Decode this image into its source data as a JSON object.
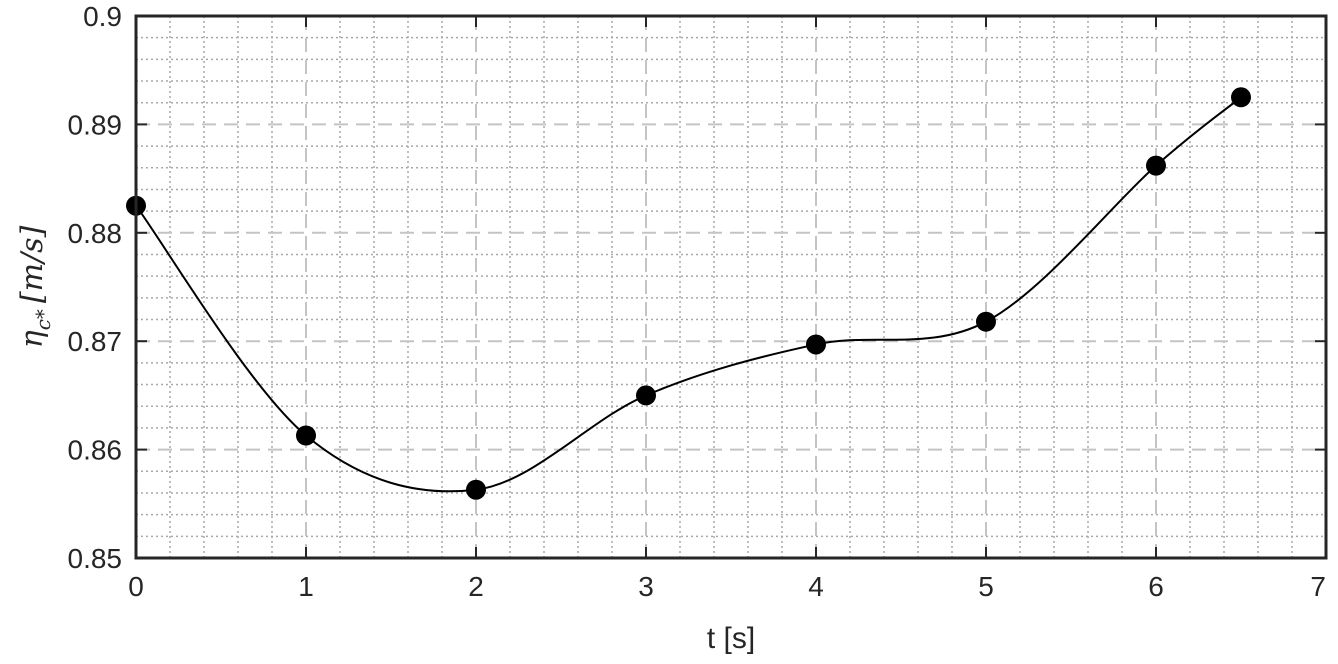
{
  "chart_data": {
    "type": "line",
    "xlabel": "t [s]",
    "ylabel": "η_c* [m/s]",
    "ylabel_parts": {
      "symbol": "η",
      "subscript": "c*",
      "units": "[m/s]"
    },
    "xlim": [
      0,
      7
    ],
    "ylim": [
      0.85,
      0.9
    ],
    "x_ticks": [
      0,
      1,
      2,
      3,
      4,
      5,
      6,
      7
    ],
    "y_ticks": [
      0.85,
      0.86,
      0.87,
      0.88,
      0.89,
      0.9
    ],
    "x_tick_labels": [
      "0",
      "1",
      "2",
      "3",
      "4",
      "5",
      "6",
      "7"
    ],
    "y_tick_labels": [
      "0.85",
      "0.86",
      "0.87",
      "0.88",
      "0.89",
      "0.9"
    ],
    "grid": true,
    "minor_grid": true,
    "line_color": "#000000",
    "marker_color": "#000000",
    "series": [
      {
        "x": [
          0,
          1,
          2,
          3,
          4,
          5,
          6,
          6.5
        ],
        "y": [
          0.8825,
          0.8613,
          0.8563,
          0.865,
          0.8697,
          0.8718,
          0.8862,
          0.8925
        ]
      }
    ]
  }
}
